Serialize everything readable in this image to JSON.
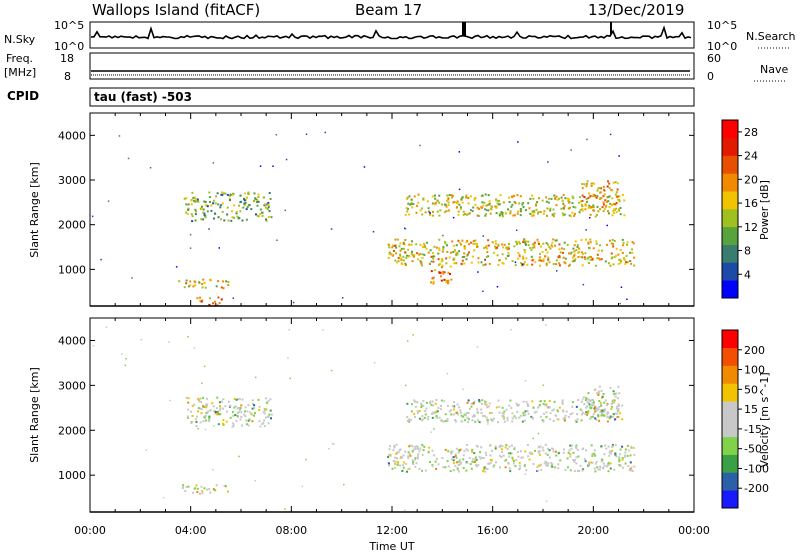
{
  "header": {
    "title": "Wallops Island (fitACF)",
    "beam": "Beam 17",
    "date": "13/Dec/2019"
  },
  "noise_panel": {
    "left_label": "N.Sky",
    "right_label": "N.Search",
    "left_ticks": [
      "10^5",
      "10^0"
    ],
    "right_ticks": [
      "10^5",
      "10^0"
    ]
  },
  "freq_panel": {
    "left_label_1": "Freq.",
    "left_label_2": "[MHz]",
    "right_label": "Nave",
    "left_ticks": [
      "18",
      "8"
    ],
    "right_ticks": [
      "60",
      "0"
    ],
    "cpid_label": "CPID"
  },
  "cpid_panel": {
    "text": "tau (fast) -503"
  },
  "colors": {
    "power_scale": [
      "#0000ff",
      "#1c4aa6",
      "#3a7d6e",
      "#57a43c",
      "#a0c020",
      "#f2c300",
      "#f28a00",
      "#e84f00",
      "#e21a00",
      "#ff0000"
    ],
    "velocity_scale": [
      "#ff0000",
      "#f24f00",
      "#f28a00",
      "#f2c300",
      "#c8c8c8",
      "#c8c8c8",
      "#7fd24a",
      "#3a9f45",
      "#2b5fa8",
      "#1a1aff"
    ]
  },
  "chart_data": [
    {
      "type": "heatmap",
      "title": "",
      "ylabel": "Slant Range [km]",
      "xlabel": "",
      "x_ticks": [
        "00:00",
        "04:00",
        "08:00",
        "12:00",
        "16:00",
        "20:00",
        "00:00"
      ],
      "xlim_hours": [
        0,
        24
      ],
      "y_ticks": [
        1000,
        2000,
        3000,
        4000
      ],
      "ylim": [
        180,
        4500
      ],
      "colorbar": {
        "label": "Power [dB]",
        "ticks": [
          4,
          8,
          12,
          16,
          20,
          24,
          28
        ],
        "range": [
          0,
          30
        ]
      },
      "regions": [
        {
          "t0": 3.7,
          "t1": 7.2,
          "r0": 2100,
          "r1": 2750,
          "level": 0.35
        },
        {
          "t0": 3.5,
          "t1": 5.5,
          "r0": 600,
          "r1": 800,
          "level": 0.55
        },
        {
          "t0": 4.2,
          "t1": 5.2,
          "r0": 180,
          "r1": 400,
          "level": 0.7
        },
        {
          "t0": 11.8,
          "t1": 21.6,
          "r0": 1100,
          "r1": 1700,
          "level": 0.55
        },
        {
          "t0": 12.5,
          "t1": 21.2,
          "r0": 2200,
          "r1": 2700,
          "level": 0.5
        },
        {
          "t0": 13.5,
          "t1": 14.5,
          "r0": 700,
          "r1": 1100,
          "level": 0.75
        },
        {
          "t0": 19.5,
          "t1": 21.0,
          "r0": 2300,
          "r1": 3000,
          "level": 0.65
        }
      ]
    },
    {
      "type": "heatmap",
      "title": "",
      "ylabel": "Slant Range [km]",
      "xlabel": "Time UT",
      "x_ticks": [
        "00:00",
        "04:00",
        "08:00",
        "12:00",
        "16:00",
        "20:00",
        "00:00"
      ],
      "xlim_hours": [
        0,
        24
      ],
      "y_ticks": [
        1000,
        2000,
        3000,
        4000
      ],
      "ylim": [
        180,
        4500
      ],
      "colorbar": {
        "label": "Velocity [m s^-1]",
        "ticks": [
          200,
          100,
          50,
          15,
          -15,
          -50,
          -100,
          -200
        ],
        "range": [
          -250,
          250
        ]
      },
      "regions": [
        {
          "t0": 3.7,
          "t1": 7.2,
          "r0": 2100,
          "r1": 2750,
          "level": 0.5
        },
        {
          "t0": 3.5,
          "t1": 5.5,
          "r0": 600,
          "r1": 800,
          "level": 0.5
        },
        {
          "t0": 11.8,
          "t1": 21.6,
          "r0": 1100,
          "r1": 1700,
          "level": 0.5
        },
        {
          "t0": 12.5,
          "t1": 21.2,
          "r0": 2200,
          "r1": 2700,
          "level": 0.5
        },
        {
          "t0": 19.5,
          "t1": 21.0,
          "r0": 2300,
          "r1": 3000,
          "level": 0.5
        }
      ]
    }
  ]
}
